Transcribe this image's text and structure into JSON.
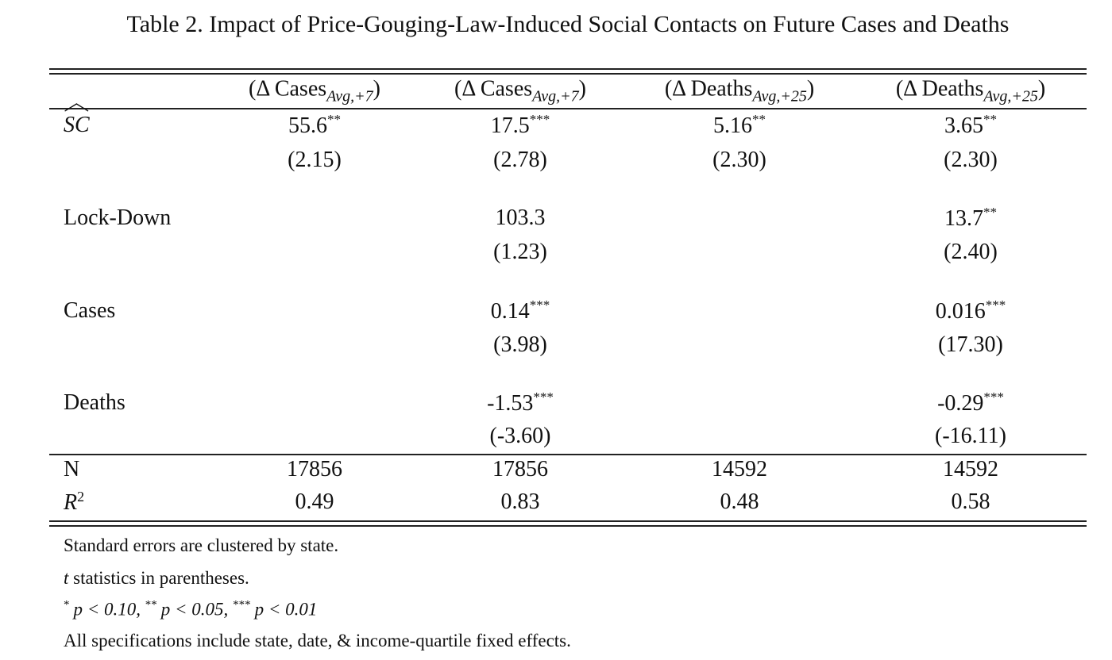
{
  "title": "Table 2. Impact of Price-Gouging-Law-Induced Social Contacts on Future Cases and Deaths",
  "columns": [
    {
      "prefix": "(Δ Cases",
      "sub": "Avg,+7",
      "suffix": ")"
    },
    {
      "prefix": "(Δ Cases",
      "sub": "Avg,+7",
      "suffix": ")"
    },
    {
      "prefix": "(Δ Deaths",
      "sub": "Avg,+25",
      "suffix": ")"
    },
    {
      "prefix": "(Δ Deaths",
      "sub": "Avg,+25",
      "suffix": ")"
    }
  ],
  "rows": [
    {
      "label": "SC",
      "label_hat": true,
      "coef": [
        {
          "v": "55.6",
          "s": "**"
        },
        {
          "v": "17.5",
          "s": "***"
        },
        {
          "v": "5.16",
          "s": "**"
        },
        {
          "v": "3.65",
          "s": "**"
        }
      ],
      "tstat": [
        "(2.15)",
        "(2.78)",
        "(2.30)",
        "(2.30)"
      ]
    },
    {
      "label": "Lock-Down",
      "coef": [
        {
          "v": "",
          "s": ""
        },
        {
          "v": "103.3",
          "s": ""
        },
        {
          "v": "",
          "s": ""
        },
        {
          "v": "13.7",
          "s": "**"
        }
      ],
      "tstat": [
        "",
        "(1.23)",
        "",
        "(2.40)"
      ]
    },
    {
      "label": "Cases",
      "coef": [
        {
          "v": "",
          "s": ""
        },
        {
          "v": "0.14",
          "s": "***"
        },
        {
          "v": "",
          "s": ""
        },
        {
          "v": "0.016",
          "s": "***"
        }
      ],
      "tstat": [
        "",
        "(3.98)",
        "",
        "(17.30)"
      ]
    },
    {
      "label": "Deaths",
      "coef": [
        {
          "v": "",
          "s": ""
        },
        {
          "v": "-1.53",
          "s": "***"
        },
        {
          "v": "",
          "s": ""
        },
        {
          "v": "-0.29",
          "s": "***"
        }
      ],
      "tstat": [
        "",
        "(-3.60)",
        "",
        "(-16.11)"
      ]
    }
  ],
  "stats": [
    {
      "label": "N",
      "values": [
        "17856",
        "17856",
        "14592",
        "14592"
      ]
    },
    {
      "label": "R",
      "label_sup": "2",
      "values": [
        "0.49",
        "0.83",
        "0.48",
        "0.58"
      ]
    }
  ],
  "notes": {
    "n1": "Standard errors are clustered by state.",
    "n2_italic": "t",
    "n2": " statistics in parentheses.",
    "n3": [
      {
        "s": "*",
        "t": "p < 0.10, "
      },
      {
        "s": "**",
        "t": "p < 0.05, "
      },
      {
        "s": "***",
        "t": "p < 0.01"
      }
    ],
    "n4": "All specifications include state, date, & income-quartile fixed effects."
  }
}
